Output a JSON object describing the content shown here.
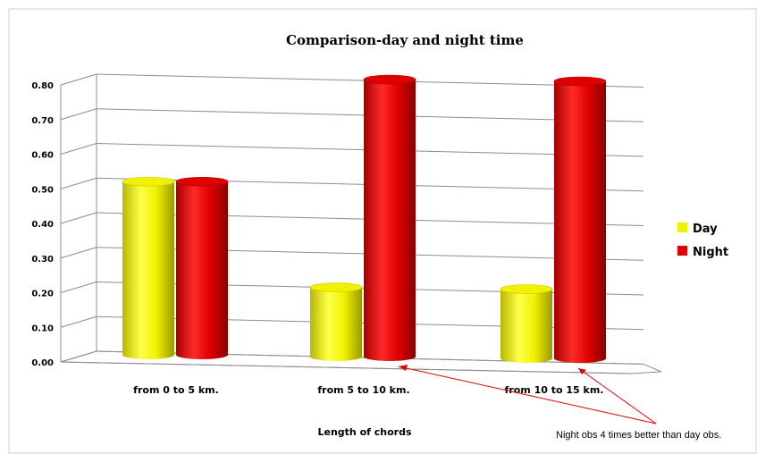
{
  "chart_data": {
    "type": "bar",
    "title": "Comparison-day and night time",
    "xlabel": "Length of chords",
    "ylabel": "",
    "ylim": [
      0,
      0.8
    ],
    "yticks": [
      "0.00",
      "0.10",
      "0.20",
      "0.30",
      "0.40",
      "0.50",
      "0.60",
      "0.70",
      "0.80"
    ],
    "categories": [
      "from 0 to 5 km.",
      "from 5 to 10 km.",
      "from 10 to 15 km."
    ],
    "series": [
      {
        "name": "Day",
        "values": [
          0.5,
          0.2,
          0.2
        ],
        "color": "#f2f200"
      },
      {
        "name": "Night",
        "values": [
          0.5,
          0.8,
          0.8
        ],
        "color": "#e00000"
      }
    ],
    "grid": true,
    "legend": "right",
    "annotation": "Night obs 4 times better than day obs."
  }
}
